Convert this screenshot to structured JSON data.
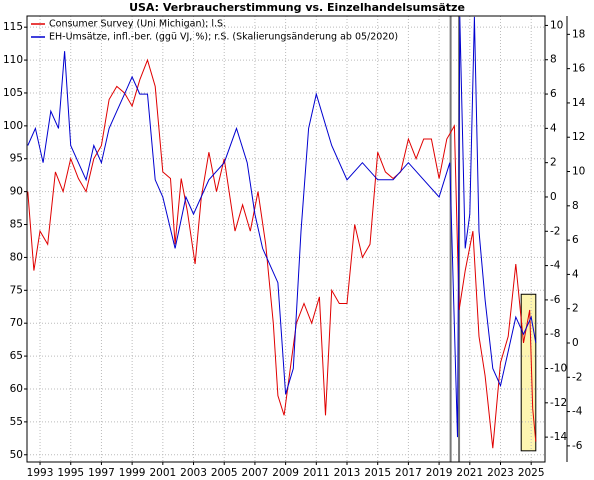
{
  "chart_data": {
    "type": "line",
    "title": "USA: Verbraucherstimmung vs. Einzelhandelsumsätze",
    "xlim": [
      1992.15,
      2025.9
    ],
    "xticks": [
      1993,
      1995,
      1997,
      1999,
      2001,
      2003,
      2005,
      2007,
      2009,
      2011,
      2013,
      2015,
      2017,
      2019,
      2021,
      2023,
      2025
    ],
    "ylim": [
      48.9,
      116.7
    ],
    "yticks": [
      50,
      55,
      60,
      65,
      70,
      75,
      80,
      85,
      90,
      95,
      100,
      105,
      110,
      115
    ],
    "y2lim": [
      -15.45,
      10.55
    ],
    "y2ticks": [
      -14,
      -12,
      -10,
      -8,
      -6,
      -4,
      -2,
      0,
      2,
      4,
      6,
      8,
      10
    ],
    "y3lim": [
      -6.94,
      19.07
    ],
    "y3ticks": [
      -6,
      -4,
      -2,
      0,
      2,
      4,
      6,
      8,
      10,
      12,
      14,
      16,
      18
    ],
    "grid": true,
    "legend": "upper left",
    "vlines": [
      2019.75,
      2020.3
    ],
    "highlight": {
      "x": [
        2024.35,
        2025.3
      ],
      "y": [
        50.6,
        74.4
      ],
      "color": "#fdf5b0"
    },
    "series": [
      {
        "name": "Consumer Survey (Uni Michigan); l.S.",
        "color": "#e00000",
        "axis": "y",
        "x": [
          1992.2,
          1992.6,
          1993.0,
          1993.5,
          1994.0,
          1994.5,
          1995.0,
          1995.5,
          1996.0,
          1996.5,
          1997.0,
          1997.5,
          1998.0,
          1998.5,
          1999.0,
          1999.5,
          2000.0,
          2000.5,
          2001.0,
          2001.5,
          2001.8,
          2002.2,
          2002.6,
          2003.1,
          2003.5,
          2004.0,
          2004.5,
          2005.0,
          2005.7,
          2006.2,
          2006.7,
          2007.2,
          2007.7,
          2008.2,
          2008.5,
          2008.9,
          2009.3,
          2009.7,
          2010.2,
          2010.7,
          2011.2,
          2011.6,
          2012.0,
          2012.5,
          2013.0,
          2013.5,
          2014.0,
          2014.5,
          2015.0,
          2015.5,
          2016.0,
          2016.5,
          2017.0,
          2017.5,
          2018.0,
          2018.5,
          2019.0,
          2019.5,
          2020.0,
          2020.3,
          2020.7,
          2021.2,
          2021.6,
          2022.0,
          2022.5,
          2023.0,
          2023.5,
          2024.0,
          2024.5,
          2024.9,
          2025.1,
          2025.3
        ],
        "values": [
          90,
          78,
          84,
          82,
          93,
          90,
          95,
          92,
          90,
          95,
          97,
          104,
          106,
          105,
          103,
          107,
          110,
          106,
          93,
          92,
          82,
          92,
          87,
          79,
          89,
          96,
          90,
          95,
          84,
          88,
          84,
          90,
          82,
          70,
          59,
          56,
          63,
          70,
          73,
          70,
          74,
          56,
          75,
          73,
          73,
          85,
          80,
          82,
          96,
          93,
          92,
          93,
          98,
          95,
          98,
          98,
          92,
          98,
          100,
          72,
          78,
          84,
          68,
          62,
          51,
          64,
          68,
          79,
          67,
          72,
          57,
          52
        ]
      },
      {
        "name": "EH-Umsätze, infl.-ber. (ggü VJ, %); r.S. (Skalierungsänderung ab 05/2020)",
        "color": "#0000d0",
        "axis": "y2",
        "x": [
          1992.2,
          1992.7,
          1993.2,
          1993.7,
          1994.2,
          1994.6,
          1995.0,
          1995.5,
          1996.0,
          1996.5,
          1997.0,
          1997.5,
          1998.0,
          1998.5,
          1999.0,
          1999.5,
          2000.0,
          2000.5,
          2001.0,
          2001.8,
          2002.5,
          2003.0,
          2004.0,
          2005.0,
          2005.8,
          2006.5,
          2007.0,
          2007.5,
          2008.5,
          2009.0,
          2009.5,
          2010.0,
          2010.5,
          2011.0,
          2012.0,
          2013.0,
          2014.0,
          2015.0,
          2016.0,
          2017.0,
          2018.0,
          2019.0,
          2019.7,
          2020.2,
          2020.35,
          2020.7,
          2021.0,
          2021.3,
          2021.6,
          2022.0,
          2022.5,
          2023.0,
          2023.5,
          2024.0,
          2024.5,
          2025.0,
          2025.3
        ],
        "values": [
          3,
          4,
          2,
          5,
          4,
          8.5,
          3,
          2,
          1,
          3,
          2,
          4,
          5,
          6,
          7,
          6,
          6,
          1,
          0,
          -3,
          0,
          -1,
          1,
          2,
          4,
          2,
          -1,
          -3,
          -5,
          -11.5,
          -10,
          -2,
          4,
          6,
          3,
          1,
          2,
          1,
          1,
          2,
          1,
          0,
          2,
          -14,
          10.5,
          -3,
          -1,
          10.5,
          -2,
          -6,
          -10,
          -11,
          -9,
          -7,
          -8,
          -7,
          -8.5
        ]
      }
    ]
  }
}
